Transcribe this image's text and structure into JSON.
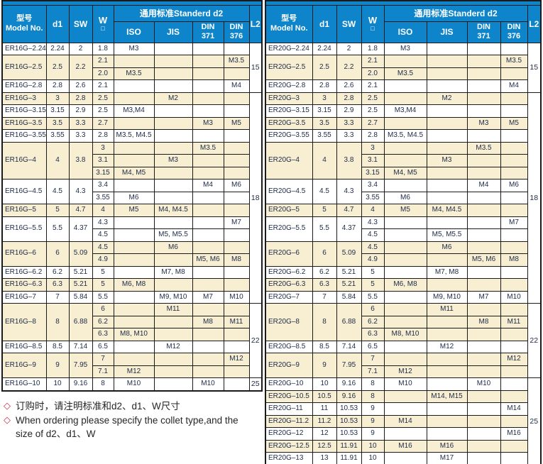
{
  "colors": {
    "header_bg": "#0e85cb",
    "row_alt_bg": "#f8efd3",
    "border": "#1a1a1a",
    "note_diamond": "#c8354f"
  },
  "header": {
    "model_zh": "型号",
    "model_en": "Model No.",
    "d1": "d1",
    "sw": "SW",
    "w": "W",
    "w_symbol": "□",
    "standard": "通用标准Standerd  d2",
    "iso": "ISO",
    "jis": "JIS",
    "din371_line1": "DIN",
    "din371_line2": "371",
    "din376_line1": "DIN",
    "din376_line2": "376",
    "l2": "L2"
  },
  "notes": {
    "diamond": "◇",
    "line1": "订购时，请注明标准和d2、d1、W尺寸",
    "line2a": "When ordering please specify the collet type,and the",
    "line2b": "size of d2、d1、W"
  },
  "tables": [
    {
      "id": "er16g",
      "l2_groups": [
        {
          "label": "15",
          "rows": 4
        },
        {
          "label": "18",
          "rows": 17
        },
        {
          "label": "22",
          "rows": 6
        },
        {
          "label": "25",
          "rows": 1
        }
      ],
      "groups": [
        {
          "model": "ER16G–2.24",
          "d1": "2.24",
          "sw": "2",
          "subs": [
            {
              "w": "1.8",
              "iso": "M3"
            }
          ]
        },
        {
          "model": "ER16G–2.5",
          "d1": "2.5",
          "sw": "2.2",
          "subs": [
            {
              "w": "2.1",
              "din376": "M3.5"
            },
            {
              "w": "2.0",
              "iso": "M3.5"
            }
          ]
        },
        {
          "model": "ER16G–2.8",
          "d1": "2.8",
          "sw": "2.6",
          "subs": [
            {
              "w": "2.1",
              "din376": "M4"
            }
          ]
        },
        {
          "model": "ER16G–3",
          "d1": "3",
          "sw": "2.8",
          "subs": [
            {
              "w": "2.5",
              "jis": "M2"
            }
          ]
        },
        {
          "model": "ER16G–3.15",
          "d1": "3.15",
          "sw": "2.9",
          "subs": [
            {
              "w": "2.5",
              "iso": "M3,M4"
            }
          ]
        },
        {
          "model": "ER16G–3.5",
          "d1": "3.5",
          "sw": "3.3",
          "subs": [
            {
              "w": "2.7",
              "din371": "M3",
              "din376": "M5"
            }
          ]
        },
        {
          "model": "ER16G–3.55",
          "d1": "3.55",
          "sw": "3.3",
          "subs": [
            {
              "w": "2.8",
              "iso": "M3.5, M4.5"
            }
          ]
        },
        {
          "model": "ER16G–4",
          "d1": "4",
          "sw": "3.8",
          "subs": [
            {
              "w": "3",
              "din371": "M3.5"
            },
            {
              "w": "3.1",
              "jis": "M3"
            },
            {
              "w": "3.15",
              "iso": "M4, M5"
            }
          ]
        },
        {
          "model": "ER16G–4.5",
          "d1": "4.5",
          "sw": "4.3",
          "subs": [
            {
              "w": "3.4",
              "din371": "M4",
              "din376": "M6"
            },
            {
              "w": "3.55",
              "iso": "M6"
            }
          ]
        },
        {
          "model": "ER16G–5",
          "d1": "5",
          "sw": "4.7",
          "subs": [
            {
              "w": "4",
              "iso": "M5",
              "jis": "M4, M4.5"
            }
          ]
        },
        {
          "model": "ER16G–5.5",
          "d1": "5.5",
          "sw": "4.37",
          "subs": [
            {
              "w": "4.3",
              "din376": "M7"
            },
            {
              "w": "4.5",
              "jis": "M5, M5.5"
            }
          ]
        },
        {
          "model": "ER16G–6",
          "d1": "6",
          "sw": "5.09",
          "subs": [
            {
              "w": "4.5",
              "jis": "M6"
            },
            {
              "w": "4.9",
              "din371": "M5, M6",
              "din376": "M8"
            }
          ]
        },
        {
          "model": "ER16G–6.2",
          "d1": "6.2",
          "sw": "5.21",
          "subs": [
            {
              "w": "5",
              "jis": "M7, M8"
            }
          ]
        },
        {
          "model": "ER16G–6.3",
          "d1": "6.3",
          "sw": "5.21",
          "subs": [
            {
              "w": "5",
              "iso": "M6, M8"
            }
          ]
        },
        {
          "model": "ER16G–7",
          "d1": "7",
          "sw": "5.84",
          "subs": [
            {
              "w": "5.5",
              "jis": "M9, M10",
              "din371": "M7",
              "din376": "M10"
            }
          ]
        },
        {
          "model": "ER16G–8",
          "d1": "8",
          "sw": "6.88",
          "subs": [
            {
              "w": "6",
              "jis": "M11"
            },
            {
              "w": "6.2",
              "din371": "M8",
              "din376": "M11"
            },
            {
              "w": "6.3",
              "iso": "M8, M10"
            }
          ]
        },
        {
          "model": "ER16G–8.5",
          "d1": "8.5",
          "sw": "7.14",
          "subs": [
            {
              "w": "6.5",
              "jis": "M12"
            }
          ]
        },
        {
          "model": "ER16G–9",
          "d1": "9",
          "sw": "7.95",
          "subs": [
            {
              "w": "7",
              "din376": "M12"
            },
            {
              "w": "7.1",
              "iso": "M12"
            }
          ]
        },
        {
          "model": "ER16G–10",
          "d1": "10",
          "sw": "9.16",
          "subs": [
            {
              "w": "8",
              "iso": "M10",
              "din371": "M10"
            }
          ]
        }
      ]
    },
    {
      "id": "er20g",
      "l2_groups": [
        {
          "label": "15",
          "rows": 4
        },
        {
          "label": "18",
          "rows": 17
        },
        {
          "label": "22",
          "rows": 6
        },
        {
          "label": "25",
          "rows": 7
        }
      ],
      "groups": [
        {
          "model": "ER20G–2.24",
          "d1": "2.24",
          "sw": "2",
          "subs": [
            {
              "w": "1.8",
              "iso": "M3"
            }
          ]
        },
        {
          "model": "ER20G–2.5",
          "d1": "2.5",
          "sw": "2.2",
          "subs": [
            {
              "w": "2.1",
              "din376": "M3.5"
            },
            {
              "w": "2.0",
              "iso": "M3.5"
            }
          ]
        },
        {
          "model": "ER20G–2.8",
          "d1": "2.8",
          "sw": "2.6",
          "subs": [
            {
              "w": "2.1",
              "din376": "M4"
            }
          ]
        },
        {
          "model": "ER20G–3",
          "d1": "3",
          "sw": "2.8",
          "subs": [
            {
              "w": "2.5",
              "jis": "M2"
            }
          ]
        },
        {
          "model": "ER20G–3.15",
          "d1": "3.15",
          "sw": "2.9",
          "subs": [
            {
              "w": "2.5",
              "iso": "M3,M4"
            }
          ]
        },
        {
          "model": "ER20G–3.5",
          "d1": "3.5",
          "sw": "3.3",
          "subs": [
            {
              "w": "2.7",
              "din371": "M3",
              "din376": "M5"
            }
          ]
        },
        {
          "model": "ER20G–3.55",
          "d1": "3.55",
          "sw": "3.3",
          "subs": [
            {
              "w": "2.8",
              "iso": "M3.5, M4.5"
            }
          ]
        },
        {
          "model": "ER20G–4",
          "d1": "4",
          "sw": "3.8",
          "subs": [
            {
              "w": "3",
              "din371": "M3.5"
            },
            {
              "w": "3.1",
              "jis": "M3"
            },
            {
              "w": "3.15",
              "iso": "M4, M5"
            }
          ]
        },
        {
          "model": "ER20G–4.5",
          "d1": "4.5",
          "sw": "4.3",
          "subs": [
            {
              "w": "3.4",
              "din371": "M4",
              "din376": "M6"
            },
            {
              "w": "3.55",
              "iso": "M6"
            }
          ]
        },
        {
          "model": "ER20G–5",
          "d1": "5",
          "sw": "4.7",
          "subs": [
            {
              "w": "4",
              "iso": "M5",
              "jis": "M4, M4.5"
            }
          ]
        },
        {
          "model": "ER20G–5.5",
          "d1": "5.5",
          "sw": "4.37",
          "subs": [
            {
              "w": "4.3",
              "din376": "M7"
            },
            {
              "w": "4.5",
              "jis": "M5, M5.5"
            }
          ]
        },
        {
          "model": "ER20G–6",
          "d1": "6",
          "sw": "5.09",
          "subs": [
            {
              "w": "4.5",
              "jis": "M6"
            },
            {
              "w": "4.9",
              "din371": "M5, M6",
              "din376": "M8"
            }
          ]
        },
        {
          "model": "ER20G–6.2",
          "d1": "6.2",
          "sw": "5.21",
          "subs": [
            {
              "w": "5",
              "jis": "M7, M8"
            }
          ]
        },
        {
          "model": "ER20G–6.3",
          "d1": "6.3",
          "sw": "5.21",
          "subs": [
            {
              "w": "5",
              "iso": "M6, M8"
            }
          ]
        },
        {
          "model": "ER20G–7",
          "d1": "7",
          "sw": "5.84",
          "subs": [
            {
              "w": "5.5",
              "jis": "M9, M10",
              "din371": "M7",
              "din376": "M10"
            }
          ]
        },
        {
          "model": "ER20G–8",
          "d1": "8",
          "sw": "6.88",
          "subs": [
            {
              "w": "6",
              "jis": "M11"
            },
            {
              "w": "6.2",
              "din371": "M8",
              "din376": "M11"
            },
            {
              "w": "6.3",
              "iso": "M8, M10"
            }
          ]
        },
        {
          "model": "ER20G–8.5",
          "d1": "8.5",
          "sw": "7.14",
          "subs": [
            {
              "w": "6.5",
              "jis": "M12"
            }
          ]
        },
        {
          "model": "ER20G–9",
          "d1": "9",
          "sw": "7.95",
          "subs": [
            {
              "w": "7",
              "din376": "M12"
            },
            {
              "w": "7.1",
              "iso": "M12"
            }
          ]
        },
        {
          "model": "ER20G–10",
          "d1": "10",
          "sw": "9.16",
          "subs": [
            {
              "w": "8",
              "iso": "M10",
              "din371": "M10"
            }
          ]
        },
        {
          "model": "ER20G–10.5",
          "d1": "10.5",
          "sw": "9.16",
          "subs": [
            {
              "w": "8",
              "jis": "M14, M15"
            }
          ]
        },
        {
          "model": "ER20G–11",
          "d1": "11",
          "sw": "10.53",
          "subs": [
            {
              "w": "9",
              "din376": "M14"
            }
          ]
        },
        {
          "model": "ER20G–11.2",
          "d1": "11.2",
          "sw": "10.53",
          "subs": [
            {
              "w": "9",
              "iso": "M14"
            }
          ]
        },
        {
          "model": "ER20G–12",
          "d1": "12",
          "sw": "10.53",
          "subs": [
            {
              "w": "9",
              "din376": "M16"
            }
          ]
        },
        {
          "model": "ER20G–12.5",
          "d1": "12.5",
          "sw": "11.91",
          "subs": [
            {
              "w": "10",
              "iso": "M16",
              "jis": "M16"
            }
          ]
        },
        {
          "model": "ER20G–13",
          "d1": "13",
          "sw": "11.91",
          "subs": [
            {
              "w": "10",
              "jis": "M17"
            }
          ]
        }
      ]
    }
  ]
}
